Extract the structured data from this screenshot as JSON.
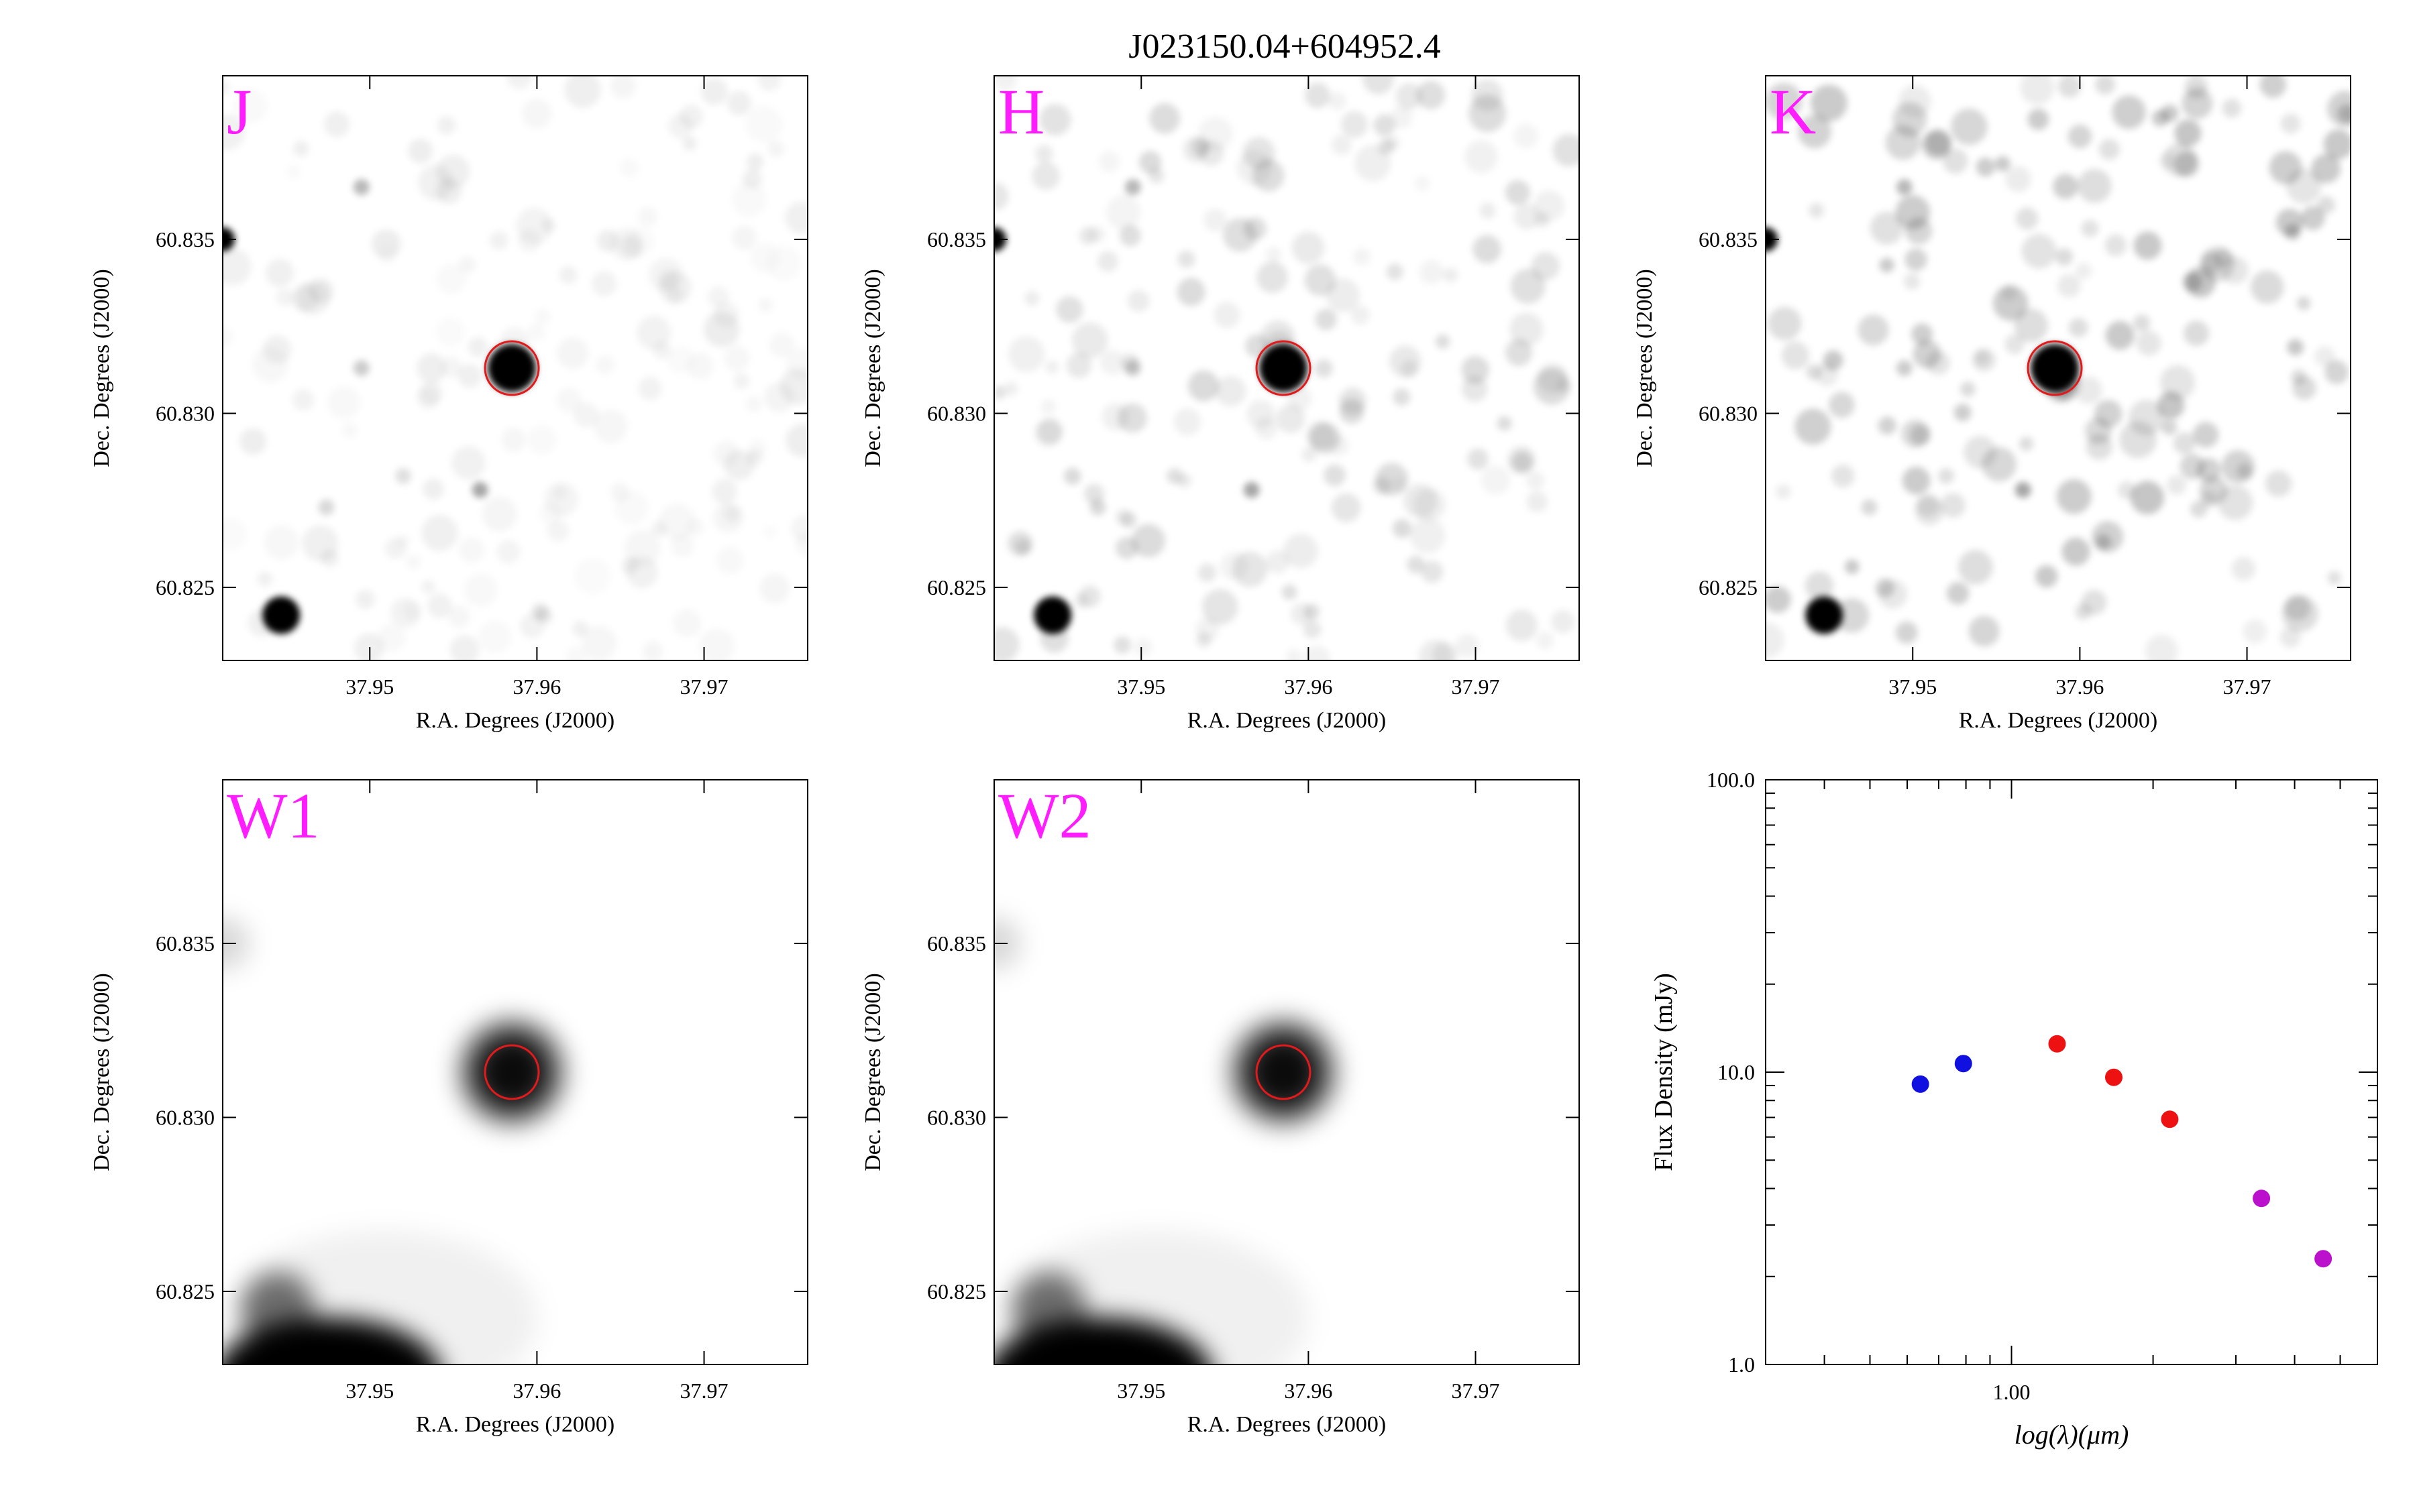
{
  "title": "J023150.04+604952.4",
  "colors": {
    "band_label": "#ff1cff",
    "aperture": "#e31a1c",
    "point_blue": "#1010e0",
    "point_red": "#ee1111",
    "point_purple": "#bb11cc",
    "frame": "#000000"
  },
  "cutouts": {
    "xlabel": "R.A. Degrees (J2000)",
    "ylabel": "Dec. Degrees (J2000)",
    "xticks": [
      "37.95",
      "37.96",
      "37.97"
    ],
    "yticks": [
      "60.835",
      "60.830",
      "60.825"
    ],
    "panels": [
      {
        "band": "J",
        "smooth": false
      },
      {
        "band": "H",
        "smooth": false
      },
      {
        "band": "K",
        "smooth": false
      },
      {
        "band": "W1",
        "smooth": true
      },
      {
        "band": "W2",
        "smooth": true
      }
    ]
  },
  "chart_data": {
    "type": "scatter",
    "xlabel": "log(λ)(μm)",
    "ylabel": "Flux Density (mJy)",
    "xscale": "log",
    "yscale": "log",
    "xlim": [
      0.3,
      6.0
    ],
    "ylim": [
      1.0,
      100.0
    ],
    "xtick_labels": [
      "1.00"
    ],
    "ytick_labels": [
      "100.0",
      "10.0",
      "1.0"
    ],
    "series": [
      {
        "color": "#1010e0",
        "points": [
          [
            0.64,
            9.1
          ],
          [
            0.79,
            10.7
          ]
        ]
      },
      {
        "color": "#ee1111",
        "points": [
          [
            1.25,
            12.5
          ],
          [
            1.65,
            9.6
          ],
          [
            2.17,
            6.9
          ]
        ]
      },
      {
        "color": "#bb11cc",
        "points": [
          [
            3.4,
            3.7
          ],
          [
            4.6,
            2.3
          ]
        ]
      }
    ]
  }
}
